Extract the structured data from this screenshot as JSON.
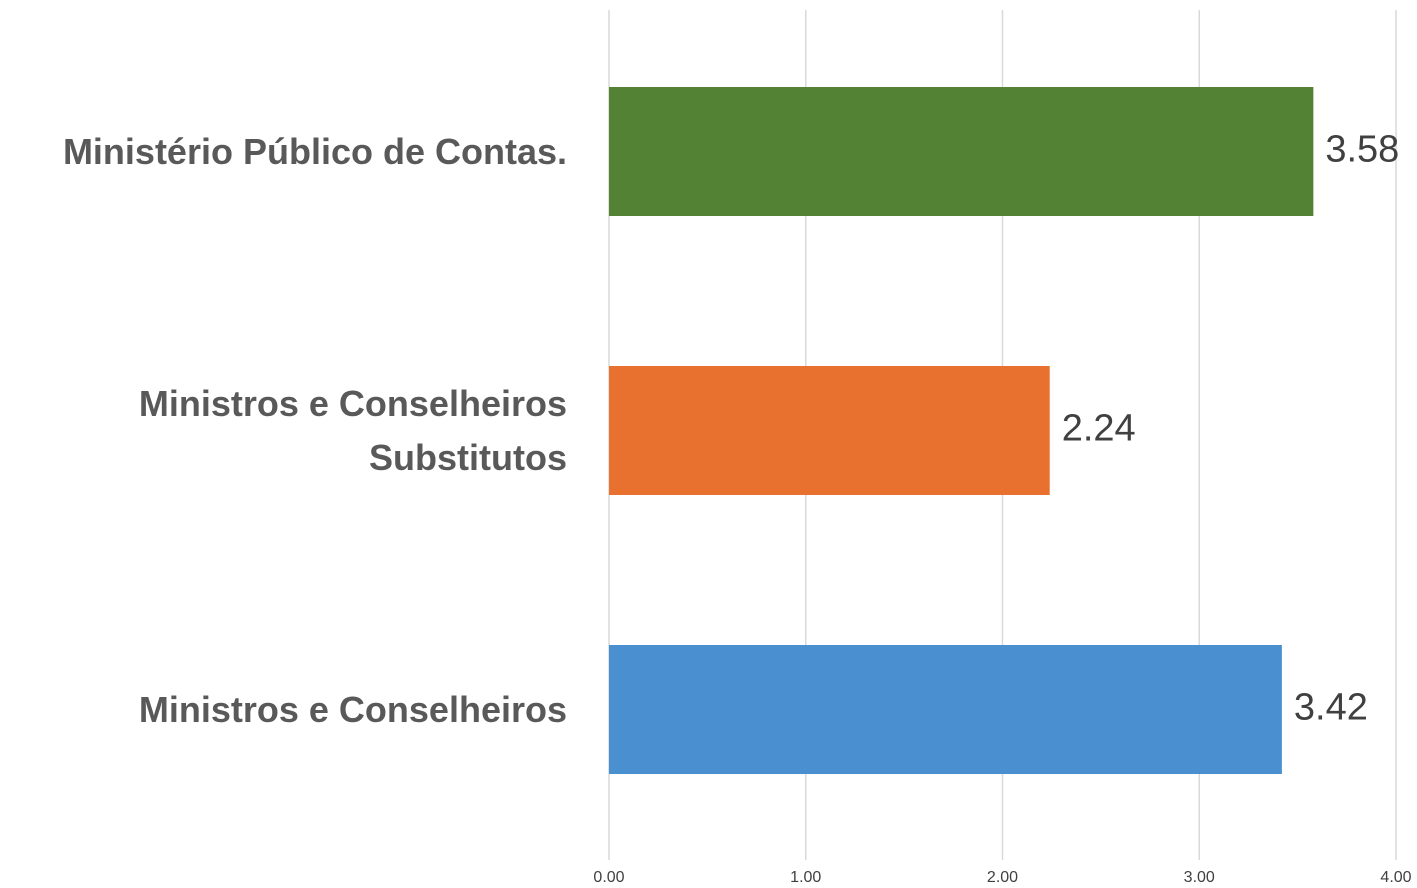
{
  "chart_data": {
    "type": "bar",
    "orientation": "horizontal",
    "categories": [
      "Ministério Público de Contas.",
      "Ministros e Conselheiros Substitutos",
      "Ministros e Conselheiros"
    ],
    "values": [
      3.58,
      2.24,
      3.42
    ],
    "colors": [
      "#548235",
      "#e8712f",
      "#4a8fd0"
    ],
    "xlim": [
      0,
      4
    ],
    "xticks": [
      {
        "value": 0,
        "label": "0.00"
      },
      {
        "value": 1,
        "label": "1.00"
      },
      {
        "value": 2,
        "label": "2.00"
      },
      {
        "value": 3,
        "label": "3.00"
      },
      {
        "value": 4,
        "label": "4.00"
      }
    ],
    "grid": true
  }
}
